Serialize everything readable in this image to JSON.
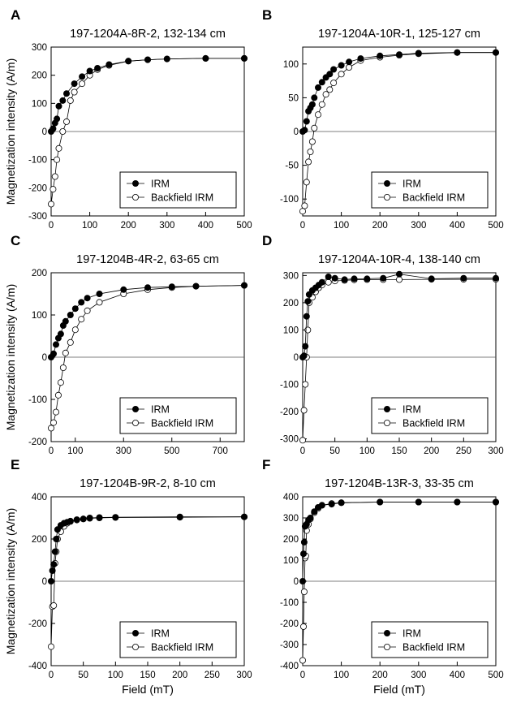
{
  "figure": {
    "ylabel": "Magnetization intensity (A/m)",
    "xlabel": "Field (mT)"
  },
  "chart_data": [
    {
      "type": "line",
      "panel": "A",
      "title": "197-1204A-8R-2, 132-134 cm",
      "xlabel": "",
      "ylabel": "Magnetization intensity (A/m)",
      "xlim": [
        0,
        500
      ],
      "ylim": [
        -300,
        300
      ],
      "xticks": [
        0,
        100,
        200,
        300,
        400,
        500
      ],
      "yticks": [
        -300,
        -200,
        -100,
        0,
        100,
        200,
        300
      ],
      "zero_line": true,
      "legend_position": "bottom-right",
      "series": [
        {
          "name": "IRM",
          "marker": "filled-circle",
          "x": [
            0,
            5,
            10,
            15,
            20,
            30,
            40,
            60,
            80,
            100,
            120,
            150,
            200,
            250,
            300,
            400,
            500
          ],
          "y": [
            0,
            10,
            30,
            45,
            90,
            110,
            135,
            170,
            195,
            215,
            225,
            238,
            250,
            255,
            258,
            260,
            260
          ]
        },
        {
          "name": "Backfield IRM",
          "marker": "open-circle",
          "x": [
            0,
            5,
            10,
            15,
            20,
            30,
            40,
            50,
            60,
            80,
            100,
            120,
            150,
            200,
            250,
            300,
            400,
            500
          ],
          "y": [
            -258,
            -205,
            -160,
            -100,
            -60,
            0,
            35,
            110,
            140,
            170,
            200,
            220,
            235,
            250,
            255,
            258,
            260,
            260
          ]
        }
      ]
    },
    {
      "type": "line",
      "panel": "B",
      "title": "197-1204A-10R-1, 125-127 cm",
      "xlabel": "",
      "ylabel": "",
      "xlim": [
        0,
        500
      ],
      "ylim": [
        -125,
        125
      ],
      "xticks": [
        0,
        100,
        200,
        300,
        400,
        500
      ],
      "yticks": [
        -100,
        -50,
        0,
        50,
        100
      ],
      "zero_line": true,
      "legend_position": "bottom-right",
      "series": [
        {
          "name": "IRM",
          "marker": "filled-circle",
          "x": [
            0,
            5,
            10,
            15,
            20,
            25,
            30,
            40,
            50,
            60,
            70,
            80,
            100,
            120,
            150,
            200,
            250,
            300,
            400,
            500
          ],
          "y": [
            0,
            2,
            15,
            30,
            35,
            40,
            50,
            65,
            73,
            80,
            85,
            92,
            98,
            103,
            108,
            112,
            114,
            116,
            117,
            117
          ]
        },
        {
          "name": "Backfield IRM",
          "marker": "open-circle",
          "x": [
            0,
            5,
            10,
            15,
            20,
            25,
            30,
            40,
            50,
            60,
            70,
            80,
            100,
            120,
            150,
            200,
            250,
            300,
            400,
            500
          ],
          "y": [
            -118,
            -110,
            -75,
            -45,
            -30,
            -15,
            5,
            25,
            40,
            55,
            62,
            72,
            85,
            95,
            105,
            110,
            113,
            115,
            117,
            117
          ]
        }
      ]
    },
    {
      "type": "line",
      "panel": "C",
      "title": "197-1204B-4R-2, 63-65 cm",
      "xlabel": "",
      "ylabel": "Magnetization intensity (A/m)",
      "xlim": [
        0,
        800
      ],
      "ylim": [
        -200,
        200
      ],
      "xticks": [
        0,
        100,
        300,
        500,
        700
      ],
      "yticks": [
        -200,
        -100,
        0,
        100,
        200
      ],
      "zero_line": true,
      "legend_position": "bottom-right",
      "series": [
        {
          "name": "IRM",
          "marker": "filled-circle",
          "x": [
            0,
            10,
            20,
            30,
            40,
            50,
            60,
            80,
            100,
            125,
            150,
            200,
            300,
            400,
            500,
            600,
            800
          ],
          "y": [
            0,
            8,
            30,
            45,
            55,
            75,
            85,
            100,
            115,
            130,
            140,
            150,
            160,
            165,
            167,
            168,
            170
          ]
        },
        {
          "name": "Backfield IRM",
          "marker": "open-circle",
          "x": [
            0,
            10,
            20,
            30,
            40,
            50,
            60,
            80,
            100,
            125,
            150,
            200,
            300,
            400,
            500,
            600,
            800
          ],
          "y": [
            -168,
            -155,
            -130,
            -90,
            -60,
            -25,
            10,
            35,
            65,
            90,
            110,
            130,
            150,
            160,
            165,
            168,
            170
          ]
        }
      ]
    },
    {
      "type": "line",
      "panel": "D",
      "title": "197-1204A-10R-4, 138-140 cm",
      "xlabel": "",
      "ylabel": "",
      "xlim": [
        0,
        300
      ],
      "ylim": [
        -310,
        310
      ],
      "xticks": [
        0,
        50,
        100,
        150,
        200,
        250,
        300
      ],
      "yticks": [
        -300,
        -200,
        -100,
        0,
        100,
        200,
        300
      ],
      "zero_line": true,
      "legend_position": "bottom-right",
      "series": [
        {
          "name": "IRM",
          "marker": "filled-circle",
          "x": [
            0,
            2,
            4,
            6,
            8,
            10,
            15,
            20,
            25,
            30,
            40,
            50,
            65,
            80,
            100,
            125,
            150,
            200,
            250,
            300
          ],
          "y": [
            0,
            5,
            40,
            150,
            205,
            230,
            245,
            255,
            265,
            275,
            295,
            290,
            285,
            288,
            288,
            290,
            305,
            288,
            290,
            290
          ]
        },
        {
          "name": "Backfield IRM",
          "marker": "open-circle",
          "x": [
            0,
            2,
            4,
            6,
            8,
            10,
            15,
            20,
            25,
            30,
            40,
            50,
            65,
            80,
            100,
            125,
            150,
            200,
            250,
            300
          ],
          "y": [
            -305,
            -195,
            -100,
            0,
            100,
            200,
            220,
            240,
            255,
            265,
            275,
            280,
            282,
            284,
            285,
            285,
            285,
            286,
            286,
            286
          ]
        }
      ]
    },
    {
      "type": "line",
      "panel": "E",
      "title": "197-1204B-9R-2, 8-10 cm",
      "xlabel": "Field (mT)",
      "ylabel": "Magnetization intensity (A/m)",
      "xlim": [
        0,
        300
      ],
      "ylim": [
        -400,
        400
      ],
      "xticks": [
        0,
        50,
        100,
        150,
        200,
        250,
        300
      ],
      "yticks": [
        -400,
        -200,
        0,
        200,
        400
      ],
      "zero_line": true,
      "legend_position": "bottom-right",
      "series": [
        {
          "name": "IRM",
          "marker": "filled-circle",
          "x": [
            0,
            2,
            4,
            6,
            8,
            10,
            15,
            20,
            25,
            30,
            40,
            50,
            60,
            75,
            100,
            200,
            300
          ],
          "y": [
            0,
            50,
            80,
            140,
            200,
            245,
            265,
            275,
            280,
            285,
            292,
            295,
            300,
            302,
            303,
            305,
            305
          ]
        },
        {
          "name": "Backfield IRM",
          "marker": "open-circle",
          "x": [
            0,
            2,
            4,
            6,
            8,
            10,
            15,
            20,
            25,
            30,
            40,
            50,
            60,
            75,
            100,
            200,
            300
          ],
          "y": [
            -310,
            -120,
            -115,
            85,
            140,
            200,
            235,
            260,
            275,
            283,
            290,
            295,
            298,
            300,
            302,
            303,
            305
          ]
        }
      ]
    },
    {
      "type": "line",
      "panel": "F",
      "title": "197-1204B-13R-3, 33-35 cm",
      "xlabel": "Field (mT)",
      "ylabel": "",
      "xlim": [
        0,
        500
      ],
      "ylim": [
        -400,
        400
      ],
      "xticks": [
        0,
        100,
        200,
        300,
        400,
        500
      ],
      "yticks": [
        -400,
        -300,
        -200,
        -100,
        0,
        100,
        200,
        300,
        400
      ],
      "zero_line": true,
      "legend_position": "bottom-right",
      "series": [
        {
          "name": "IRM",
          "marker": "filled-circle",
          "x": [
            0,
            2,
            4,
            6,
            8,
            10,
            15,
            20,
            30,
            40,
            50,
            75,
            100,
            200,
            300,
            400,
            500
          ],
          "y": [
            0,
            130,
            185,
            260,
            265,
            270,
            290,
            300,
            330,
            350,
            360,
            365,
            372,
            375,
            375,
            375,
            375
          ]
        },
        {
          "name": "Backfield IRM",
          "marker": "open-circle",
          "x": [
            0,
            2,
            4,
            6,
            8,
            10,
            15,
            20,
            30,
            40,
            50,
            75,
            100,
            200,
            300,
            400,
            500
          ],
          "y": [
            -375,
            -215,
            -50,
            110,
            120,
            240,
            270,
            295,
            325,
            345,
            360,
            368,
            372,
            375,
            375,
            375,
            375
          ]
        }
      ]
    }
  ]
}
